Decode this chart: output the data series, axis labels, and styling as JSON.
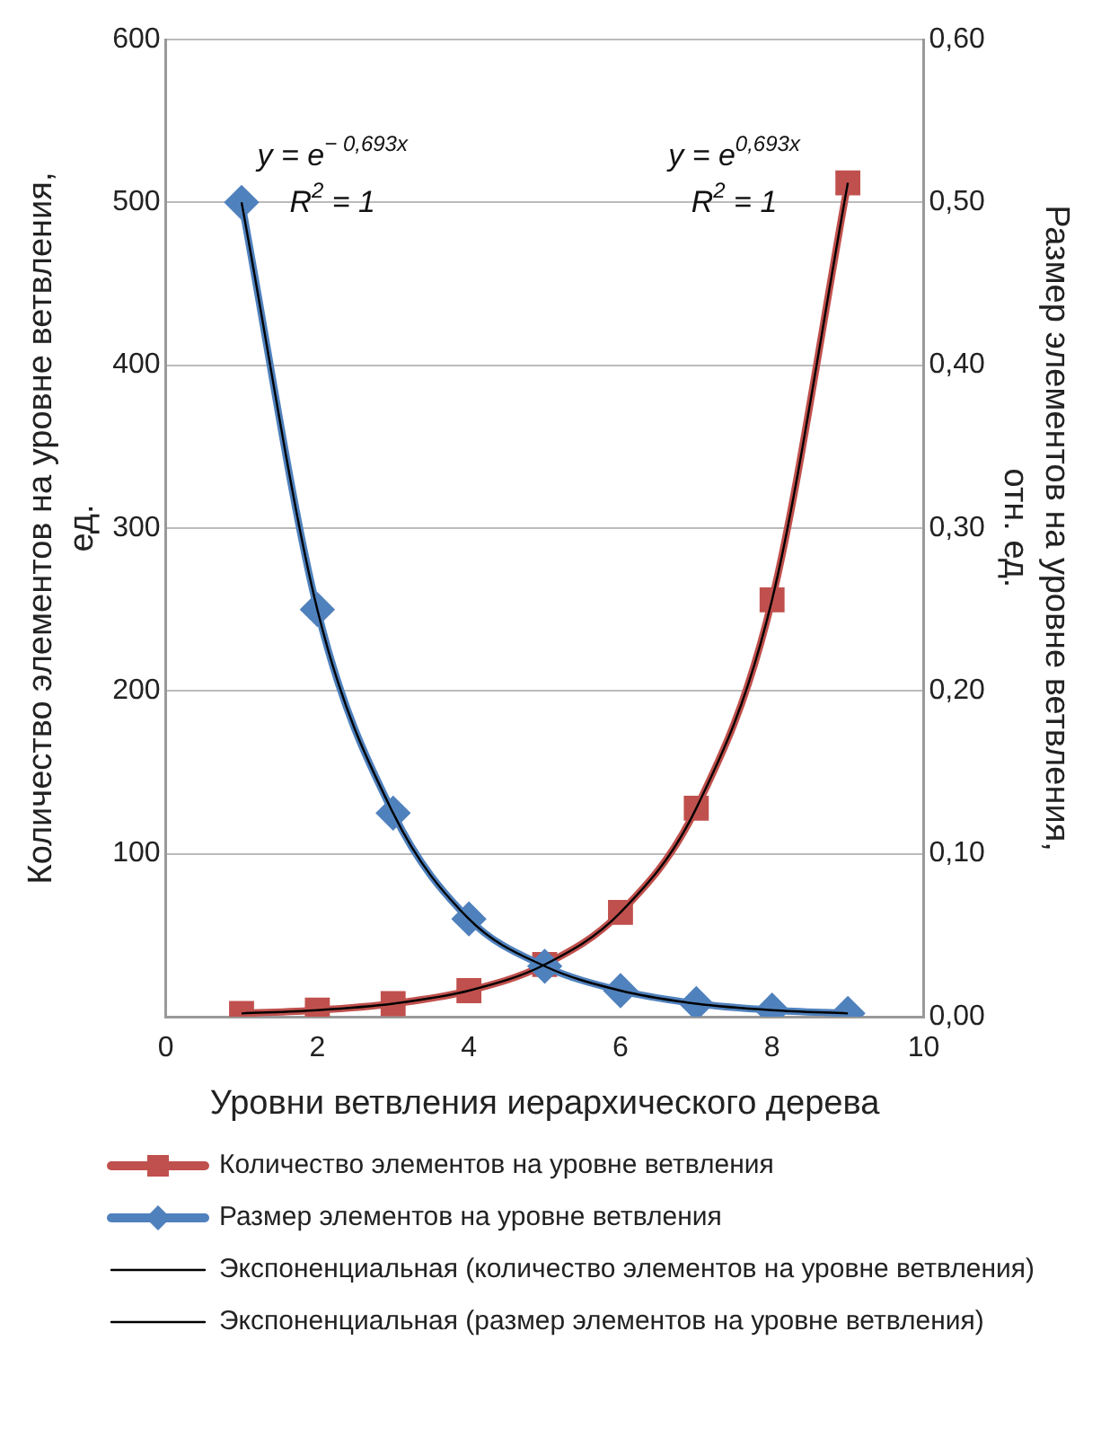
{
  "chart_data": {
    "type": "line",
    "xlabel": "Уровни ветвления иерархического дерева",
    "ylabel": "Количество элементов на уровне ветвления, ед.",
    "y2label": "Размер элементов на уровне ветвления, отн. ед.",
    "x": [
      1,
      2,
      3,
      4,
      5,
      6,
      7,
      8,
      9
    ],
    "xlim": [
      0,
      10
    ],
    "xticks": [
      0,
      2,
      4,
      6,
      8,
      10
    ],
    "ylim": [
      0,
      600
    ],
    "yticks": [
      {
        "value": 0,
        "label": null
      },
      100,
      200,
      300,
      400,
      500,
      600
    ],
    "y2lim": [
      0,
      0.6
    ],
    "y2ticks": [
      {
        "value": 0,
        "label": "0,00"
      },
      {
        "value": 0.1,
        "label": "0,10"
      },
      {
        "value": 0.2,
        "label": "0,20"
      },
      {
        "value": 0.3,
        "label": "0,30"
      },
      {
        "value": 0.4,
        "label": "0,40"
      },
      {
        "value": 0.5,
        "label": "0,50"
      },
      {
        "value": 0.6,
        "label": "0,60"
      }
    ],
    "grid": "y",
    "legend": "bottom",
    "series": [
      {
        "name": "Количество элементов на уровне ветвления",
        "color": "#c0504d",
        "marker": "square",
        "values": [
          2,
          4,
          8,
          16,
          32,
          64,
          128,
          256,
          512
        ]
      },
      {
        "name": "Размер элементов на уровне ветвления",
        "color": "#4f81bd",
        "marker": "diamond",
        "axis": "y2",
        "values": [
          0.5,
          0.25,
          0.125,
          0.06,
          0.031,
          0.016,
          0.008,
          0.004,
          0.002
        ]
      },
      {
        "name": "Экспоненциальная (количество элементов на уровне ветвления)",
        "color": "#000000",
        "marker": "none",
        "x": [
          1,
          2,
          3,
          4,
          5,
          6,
          7,
          8,
          9
        ],
        "values": [
          2,
          4,
          8,
          16,
          32,
          64,
          128,
          256,
          512
        ]
      },
      {
        "name": "Экспоненциальная (размер элементов на уровне ветвления)",
        "color": "#000000",
        "marker": "none",
        "axis": "y2",
        "x": [
          1,
          2,
          3,
          4,
          5,
          6,
          7,
          8,
          9
        ],
        "values": [
          0.5,
          0.25,
          0.125,
          0.06,
          0.031,
          0.016,
          0.008,
          0.004,
          0.002
        ]
      }
    ],
    "annotations": [
      "y = e$^{− 0,693x}$",
      "R$^{2}$ = 1",
      "y = e$^{0,693x}$",
      "R$^{2}$ = 1"
    ]
  }
}
